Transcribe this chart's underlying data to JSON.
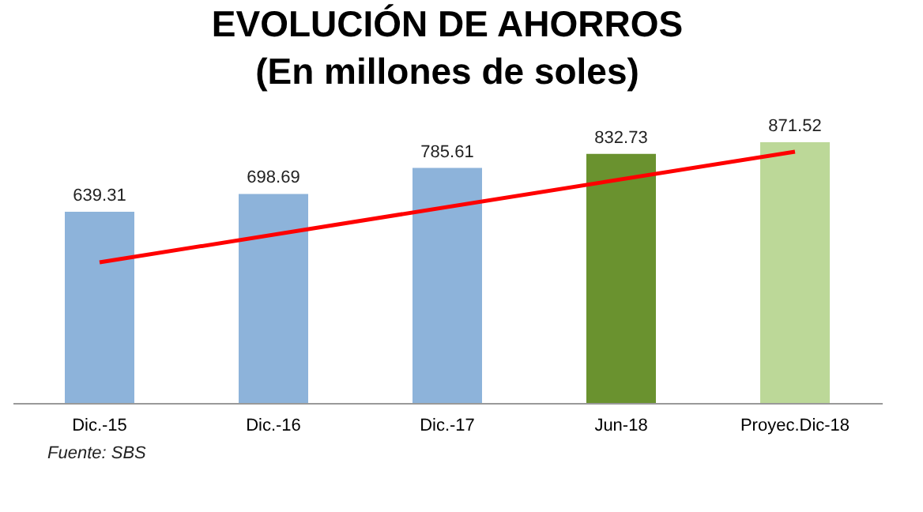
{
  "chart_data": {
    "type": "bar",
    "title": [
      "EVOLUCIÓN DE AHORROS",
      "(En millones de soles)"
    ],
    "categories": [
      "Dic.-15",
      "Dic.-16",
      "Dic.-17",
      "Jun-18",
      "Proyec.Dic-18"
    ],
    "series": [
      {
        "values": [
          639.31,
          698.69,
          785.61,
          832.73,
          871.52
        ],
        "value_labels": [
          "639.31",
          "698.69",
          "785.61",
          "832.73",
          "871.52"
        ],
        "colors": [
          "#8db3da",
          "#8db3da",
          "#8db3da",
          "#6a922f",
          "#bcd898"
        ]
      },
      {
        "type": "line",
        "color": "#ff0000",
        "x": [
          "Dic.-15",
          "Proyec.Dic-18"
        ],
        "values": [
          470,
          840
        ]
      }
    ],
    "annotations": [
      "Fuente: SBS"
    ]
  }
}
